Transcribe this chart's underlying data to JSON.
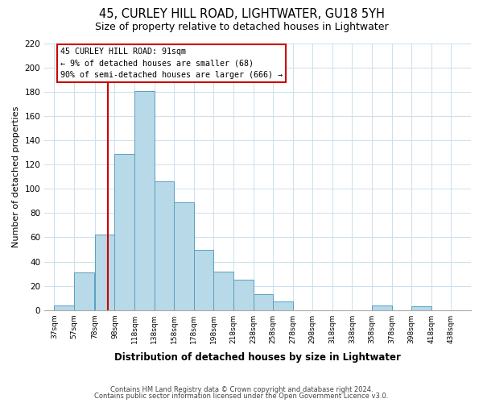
{
  "title": "45, CURLEY HILL ROAD, LIGHTWATER, GU18 5YH",
  "subtitle": "Size of property relative to detached houses in Lightwater",
  "xlabel": "Distribution of detached houses by size in Lightwater",
  "ylabel": "Number of detached properties",
  "bar_left_edges": [
    37,
    57,
    78,
    98,
    118,
    138,
    158,
    178,
    198,
    218,
    238,
    258,
    278,
    298,
    318,
    338,
    358,
    378,
    398,
    418
  ],
  "bar_heights": [
    4,
    31,
    62,
    129,
    181,
    106,
    89,
    50,
    32,
    25,
    13,
    7,
    0,
    0,
    0,
    0,
    4,
    0,
    3,
    0
  ],
  "bar_widths": [
    20,
    20,
    20,
    20,
    20,
    20,
    20,
    20,
    20,
    20,
    20,
    20,
    20,
    20,
    20,
    20,
    20,
    20,
    20,
    20
  ],
  "bar_color": "#b8d9e8",
  "bar_edgecolor": "#5a9fc0",
  "tick_labels": [
    "37sqm",
    "57sqm",
    "78sqm",
    "98sqm",
    "118sqm",
    "138sqm",
    "158sqm",
    "178sqm",
    "198sqm",
    "218sqm",
    "238sqm",
    "258sqm",
    "278sqm",
    "298sqm",
    "318sqm",
    "338sqm",
    "358sqm",
    "378sqm",
    "398sqm",
    "418sqm",
    "438sqm"
  ],
  "tick_positions": [
    37,
    57,
    78,
    98,
    118,
    138,
    158,
    178,
    198,
    218,
    238,
    258,
    278,
    298,
    318,
    338,
    358,
    378,
    398,
    418,
    438
  ],
  "ylim": [
    0,
    220
  ],
  "xlim": [
    27,
    458
  ],
  "vline_x": 91,
  "vline_color": "#cc0000",
  "ann_title": "45 CURLEY HILL ROAD: 91sqm",
  "ann_line1": "← 9% of detached houses are smaller (68)",
  "ann_line2": "90% of semi-detached houses are larger (666) →",
  "ann_box_facecolor": "#ffffff",
  "ann_box_edgecolor": "#cc0000",
  "footer1": "Contains HM Land Registry data © Crown copyright and database right 2024.",
  "footer2": "Contains public sector information licensed under the Open Government Licence v3.0.",
  "background_color": "#ffffff",
  "grid_color": "#cce0ee"
}
